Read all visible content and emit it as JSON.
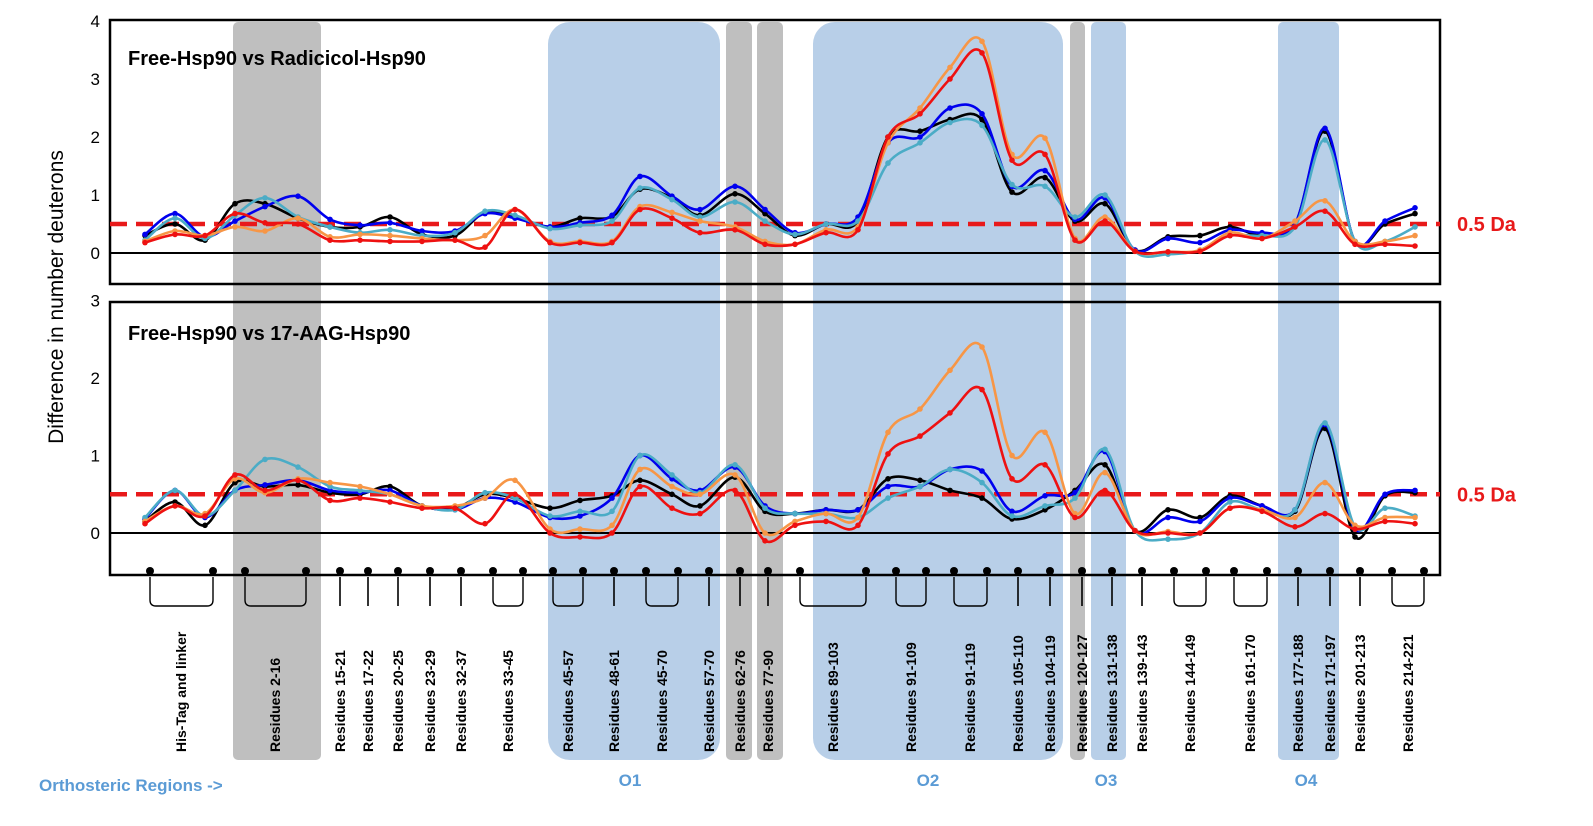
{
  "colors": {
    "black": "#000000",
    "blue": "#0000ee",
    "teal": "#4bacc6",
    "orange": "#f79646",
    "red": "#ee1111",
    "gray_band": "#bfbfbf",
    "blue_band": "#b8cfe8",
    "region_text": "#5b9bd5",
    "threshold": "#e8191a"
  },
  "ylabel": "Difference in number deuterons",
  "regions_label": "Orthosteric Regions ->",
  "chart_data": [
    {
      "type": "line",
      "title": "Free-Hsp90 vs Radicicol-Hsp90",
      "ylim": [
        -0.5,
        4
      ],
      "yticks": [
        "0",
        "1",
        "2",
        "3",
        "4"
      ],
      "threshold": 0.5,
      "threshold_label": "0.5 Da",
      "x": [
        1,
        2,
        3,
        4,
        5,
        6,
        7,
        8,
        9,
        10,
        11,
        12,
        13,
        14,
        15,
        16,
        17,
        18,
        19,
        20,
        21,
        22,
        23,
        24,
        25,
        26,
        27,
        28,
        29,
        30,
        31,
        32,
        33,
        34,
        35,
        36,
        37,
        38,
        39,
        40,
        41,
        42
      ],
      "series": [
        {
          "color": "#000000",
          "values": [
            0.3,
            0.5,
            0.22,
            0.85,
            0.85,
            0.6,
            0.45,
            0.45,
            0.62,
            0.32,
            0.3,
            0.7,
            0.62,
            0.45,
            0.6,
            0.63,
            1.1,
            0.95,
            0.65,
            1.02,
            0.68,
            0.3,
            0.5,
            0.55,
            2.0,
            2.1,
            2.3,
            2.3,
            1.05,
            1.3,
            0.55,
            0.85,
            0.05,
            0.28,
            0.3,
            0.45,
            0.3,
            0.5,
            2.1,
            0.2,
            0.5,
            0.68
          ]
        },
        {
          "color": "#0000ee",
          "values": [
            0.32,
            0.68,
            0.28,
            0.55,
            0.8,
            0.98,
            0.58,
            0.48,
            0.52,
            0.38,
            0.38,
            0.68,
            0.6,
            0.45,
            0.52,
            0.65,
            1.32,
            0.98,
            0.75,
            1.15,
            0.75,
            0.35,
            0.5,
            0.62,
            1.9,
            2.0,
            2.5,
            2.4,
            1.15,
            1.42,
            0.58,
            0.95,
            0.05,
            0.25,
            0.18,
            0.4,
            0.35,
            0.5,
            2.15,
            0.2,
            0.55,
            0.78
          ]
        },
        {
          "color": "#4bacc6",
          "values": [
            0.22,
            0.6,
            0.25,
            0.65,
            0.95,
            0.62,
            0.45,
            0.35,
            0.4,
            0.3,
            0.35,
            0.72,
            0.65,
            0.42,
            0.48,
            0.55,
            1.12,
            0.92,
            0.62,
            0.88,
            0.55,
            0.32,
            0.5,
            0.55,
            1.55,
            1.9,
            2.25,
            2.2,
            1.18,
            1.15,
            0.62,
            1.0,
            0.03,
            -0.02,
            0.05,
            0.3,
            0.3,
            0.45,
            1.95,
            0.2,
            0.2,
            0.45
          ]
        },
        {
          "color": "#f79646",
          "values": [
            0.2,
            0.38,
            0.3,
            0.45,
            0.38,
            0.6,
            0.28,
            0.32,
            0.3,
            0.25,
            0.22,
            0.3,
            0.75,
            0.2,
            0.2,
            0.2,
            0.8,
            0.7,
            0.55,
            0.45,
            0.2,
            0.15,
            0.4,
            0.45,
            1.9,
            2.5,
            3.2,
            3.65,
            1.7,
            1.98,
            0.25,
            0.62,
            0.03,
            0.02,
            0.05,
            0.35,
            0.25,
            0.55,
            0.9,
            0.2,
            0.2,
            0.3
          ]
        },
        {
          "color": "#ee1111",
          "values": [
            0.18,
            0.32,
            0.3,
            0.68,
            0.52,
            0.5,
            0.22,
            0.22,
            0.2,
            0.2,
            0.22,
            0.1,
            0.75,
            0.18,
            0.18,
            0.18,
            0.75,
            0.6,
            0.35,
            0.4,
            0.15,
            0.15,
            0.35,
            0.4,
            2.0,
            2.4,
            3.0,
            3.45,
            1.6,
            1.7,
            0.22,
            0.55,
            0.03,
            0.02,
            0.03,
            0.3,
            0.25,
            0.45,
            0.72,
            0.15,
            0.15,
            0.12
          ]
        }
      ]
    },
    {
      "type": "line",
      "title": "Free-Hsp90 vs 17-AAG-Hsp90",
      "ylim": [
        -0.55,
        3
      ],
      "yticks": [
        "0",
        "1",
        "2",
        "3"
      ],
      "threshold": 0.5,
      "threshold_label": "0.5 Da",
      "x": [
        1,
        2,
        3,
        4,
        5,
        6,
        7,
        8,
        9,
        10,
        11,
        12,
        13,
        14,
        15,
        16,
        17,
        18,
        19,
        20,
        21,
        22,
        23,
        24,
        25,
        26,
        27,
        28,
        29,
        30,
        31,
        32,
        33,
        34,
        35,
        36,
        37,
        38,
        39,
        40,
        41,
        42
      ],
      "series": [
        {
          "color": "#000000",
          "values": [
            0.15,
            0.4,
            0.1,
            0.65,
            0.6,
            0.62,
            0.52,
            0.5,
            0.6,
            0.35,
            0.32,
            0.5,
            0.45,
            0.32,
            0.42,
            0.48,
            0.68,
            0.5,
            0.35,
            0.72,
            0.28,
            0.25,
            0.3,
            0.3,
            0.7,
            0.68,
            0.55,
            0.45,
            0.18,
            0.3,
            0.55,
            0.88,
            0.03,
            0.3,
            0.2,
            0.48,
            0.35,
            0.28,
            1.35,
            -0.05,
            0.48,
            0.52
          ]
        },
        {
          "color": "#0000ee",
          "values": [
            0.18,
            0.55,
            0.2,
            0.55,
            0.62,
            0.68,
            0.55,
            0.52,
            0.55,
            0.35,
            0.3,
            0.45,
            0.4,
            0.2,
            0.22,
            0.45,
            1.0,
            0.7,
            0.55,
            0.85,
            0.35,
            0.25,
            0.3,
            0.3,
            0.6,
            0.6,
            0.82,
            0.8,
            0.28,
            0.48,
            0.52,
            1.05,
            0.03,
            0.2,
            0.15,
            0.45,
            0.35,
            0.3,
            1.4,
            0.05,
            0.5,
            0.55
          ]
        },
        {
          "color": "#4bacc6",
          "values": [
            0.2,
            0.55,
            0.22,
            0.55,
            0.95,
            0.85,
            0.6,
            0.55,
            0.5,
            0.35,
            0.3,
            0.52,
            0.45,
            0.22,
            0.28,
            0.28,
            1.0,
            0.75,
            0.52,
            0.88,
            0.32,
            0.25,
            0.25,
            0.2,
            0.45,
            0.6,
            0.82,
            0.65,
            0.22,
            0.35,
            0.45,
            1.08,
            0.03,
            -0.08,
            0.0,
            0.4,
            0.3,
            0.3,
            1.42,
            0.08,
            0.32,
            0.22
          ]
        },
        {
          "color": "#f79646",
          "values": [
            0.15,
            0.35,
            0.25,
            0.7,
            0.52,
            0.7,
            0.65,
            0.6,
            0.5,
            0.35,
            0.35,
            0.45,
            0.68,
            0.05,
            0.05,
            0.1,
            0.82,
            0.6,
            0.5,
            0.75,
            0.0,
            0.15,
            0.25,
            0.2,
            1.3,
            1.6,
            2.1,
            2.4,
            1.0,
            1.3,
            0.25,
            0.78,
            0.03,
            0.02,
            0.0,
            0.32,
            0.3,
            0.2,
            0.65,
            0.1,
            0.2,
            0.2
          ]
        },
        {
          "color": "#ee1111",
          "values": [
            0.12,
            0.35,
            0.22,
            0.75,
            0.55,
            0.68,
            0.42,
            0.45,
            0.4,
            0.32,
            0.32,
            0.12,
            0.5,
            0.0,
            -0.05,
            0.0,
            0.6,
            0.32,
            0.25,
            0.55,
            -0.1,
            0.1,
            0.15,
            0.1,
            1.02,
            1.25,
            1.55,
            1.85,
            0.7,
            0.88,
            0.2,
            0.55,
            0.03,
            0.0,
            0.0,
            0.32,
            0.28,
            0.08,
            0.25,
            0.05,
            0.15,
            0.12
          ]
        }
      ]
    }
  ],
  "residue_labels": [
    "His-Tag and linker",
    "Residues  2-16",
    "Residues  15-21",
    "Residues  17-22",
    "Residues  20-25",
    "Residues  23-29",
    "Residues  32-37",
    "Residues  33-45",
    "Residues  45-57",
    "Residues  48-61",
    "Residues  45-70",
    "Residues  57-70",
    "Residues  62-76",
    "Residues  77-90",
    "Residues  89-103",
    "Residues  91-109",
    "Residues  91-119",
    "Residues  105-110",
    "Residues  104-119",
    "Residues  120-127",
    "Residues  131-138",
    "Residues  139-143",
    "Residues  144-149",
    "Residues  161-170",
    "Residues  177-188",
    "Residues  171-197",
    "Residues  201-213",
    "Residues  214-221"
  ],
  "orthosteric_regions": [
    "O1",
    "O2",
    "O3",
    "O4"
  ]
}
